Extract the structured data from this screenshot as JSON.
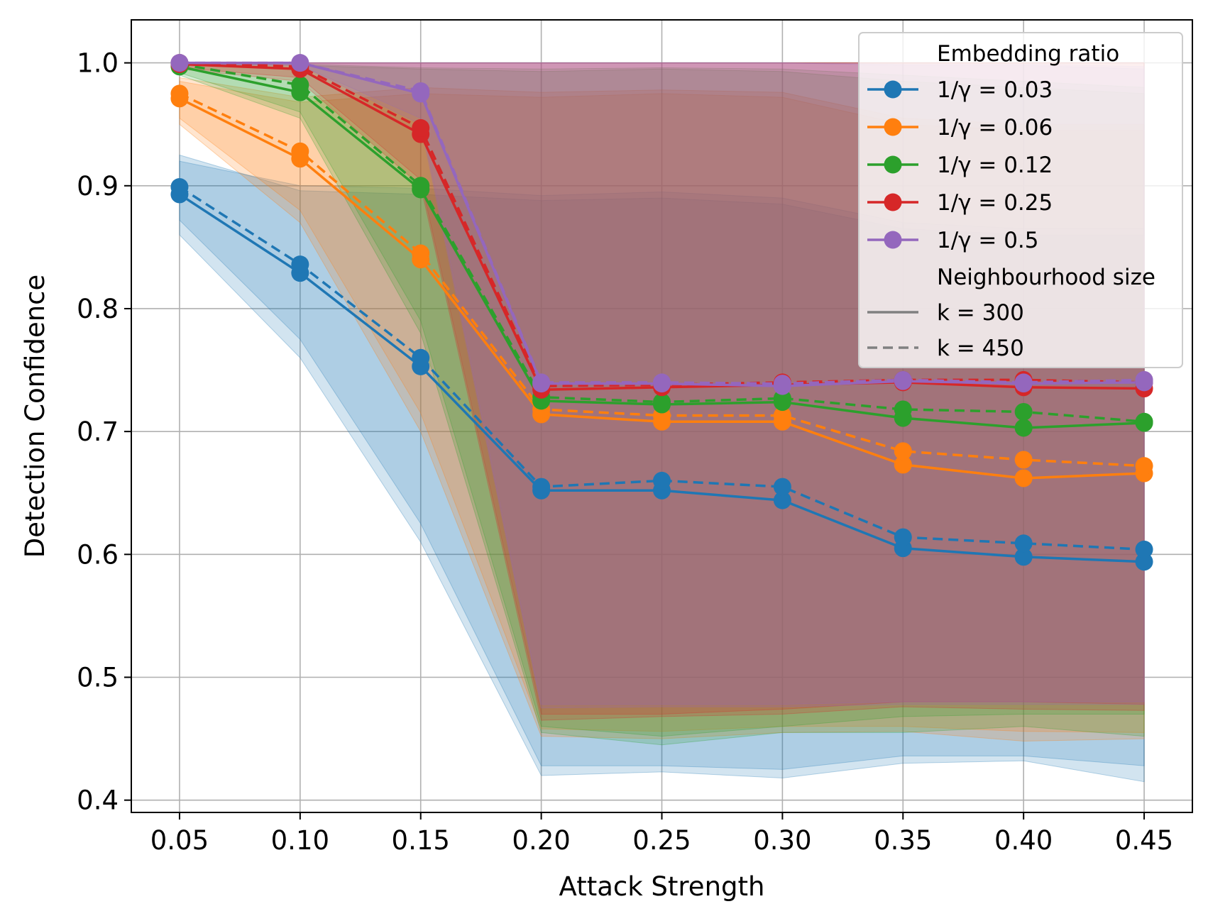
{
  "chart_data": {
    "type": "line",
    "xlabel": "Attack Strength",
    "ylabel": "Detection Confidence",
    "x": [
      0.05,
      0.1,
      0.15,
      0.2,
      0.25,
      0.3,
      0.35,
      0.4,
      0.45
    ],
    "x_tick_labels": [
      "0.05",
      "0.10",
      "0.15",
      "0.20",
      "0.25",
      "0.30",
      "0.35",
      "0.40",
      "0.45"
    ],
    "y_ticks": [
      0.4,
      0.5,
      0.6,
      0.7,
      0.8,
      0.9,
      1.0
    ],
    "y_tick_labels": [
      "0.4",
      "0.5",
      "0.6",
      "0.7",
      "0.8",
      "0.9",
      "1.0"
    ],
    "xlim": [
      0.03,
      0.47
    ],
    "ylim": [
      0.39,
      1.035
    ],
    "grid": true,
    "legend": {
      "placement": "top-right",
      "title1": "Embedding ratio",
      "title2": "Neighbourhood size",
      "style_entries": [
        {
          "label": "k = 300",
          "dash": "solid"
        },
        {
          "label": "k = 450",
          "dash": "dashed"
        }
      ]
    },
    "series": [
      {
        "name": "1/γ = 0.03",
        "color": "#1f77b4",
        "k300": [
          0.893,
          0.829,
          0.753,
          0.652,
          0.652,
          0.644,
          0.605,
          0.598,
          0.594
        ],
        "k450": [
          0.899,
          0.836,
          0.76,
          0.655,
          0.66,
          0.655,
          0.614,
          0.609,
          0.604
        ],
        "band300_low": [
          0.86,
          0.76,
          0.61,
          0.42,
          0.423,
          0.418,
          0.43,
          0.432,
          0.415
        ],
        "band300_high": [
          0.925,
          0.896,
          0.893,
          0.888,
          0.89,
          0.885,
          0.865,
          0.86,
          0.86
        ],
        "band450_low": [
          0.872,
          0.775,
          0.625,
          0.428,
          0.428,
          0.425,
          0.436,
          0.436,
          0.428
        ],
        "band450_high": [
          0.92,
          0.9,
          0.898,
          0.892,
          0.895,
          0.89,
          0.87,
          0.865,
          0.865
        ]
      },
      {
        "name": "1/γ = 0.06",
        "color": "#ff7f0e",
        "k300": [
          0.971,
          0.922,
          0.84,
          0.714,
          0.708,
          0.708,
          0.673,
          0.662,
          0.666
        ],
        "k450": [
          0.975,
          0.928,
          0.845,
          0.718,
          0.713,
          0.713,
          0.684,
          0.677,
          0.672
        ],
        "band300_low": [
          0.95,
          0.87,
          0.7,
          0.452,
          0.45,
          0.455,
          0.456,
          0.448,
          0.45
        ],
        "band300_high": [
          0.985,
          0.968,
          0.975,
          0.972,
          0.975,
          0.972,
          0.95,
          0.945,
          0.945
        ],
        "band450_low": [
          0.955,
          0.88,
          0.715,
          0.458,
          0.456,
          0.46,
          0.46,
          0.456,
          0.455
        ],
        "band450_high": [
          0.988,
          0.972,
          0.98,
          0.976,
          0.978,
          0.976,
          0.955,
          0.95,
          0.95
        ]
      },
      {
        "name": "1/γ = 0.12",
        "color": "#2ca02c",
        "k300": [
          0.997,
          0.976,
          0.897,
          0.725,
          0.722,
          0.724,
          0.711,
          0.703,
          0.707
        ],
        "k450": [
          0.999,
          0.982,
          0.9,
          0.728,
          0.724,
          0.727,
          0.718,
          0.716,
          0.708
        ],
        "band300_low": [
          0.99,
          0.955,
          0.78,
          0.455,
          0.445,
          0.455,
          0.455,
          0.46,
          0.452
        ],
        "band300_high": [
          1.0,
          0.998,
          0.995,
          0.993,
          0.995,
          0.993,
          0.985,
          0.98,
          0.975
        ],
        "band450_low": [
          0.992,
          0.96,
          0.79,
          0.46,
          0.452,
          0.46,
          0.468,
          0.47,
          0.47
        ],
        "band450_high": [
          1.0,
          0.999,
          0.996,
          0.995,
          0.996,
          0.995,
          0.99,
          0.985,
          0.98
        ]
      },
      {
        "name": "1/γ = 0.25",
        "color": "#d62728",
        "k300": [
          0.999,
          0.995,
          0.942,
          0.734,
          0.736,
          0.738,
          0.74,
          0.736,
          0.735
        ],
        "k450": [
          1.0,
          0.997,
          0.947,
          0.737,
          0.738,
          0.74,
          0.742,
          0.742,
          0.74
        ],
        "band300_low": [
          0.995,
          0.985,
          0.9,
          0.465,
          0.468,
          0.47,
          0.476,
          0.474,
          0.473
        ],
        "band300_high": [
          1.0,
          1.0,
          1.0,
          1.0,
          1.0,
          1.0,
          1.0,
          1.0,
          1.0
        ],
        "band450_low": [
          0.996,
          0.988,
          0.905,
          0.47,
          0.47,
          0.474,
          0.48,
          0.48,
          0.478
        ],
        "band450_high": [
          1.0,
          1.0,
          1.0,
          1.0,
          1.0,
          1.0,
          1.0,
          1.0,
          1.0
        ]
      },
      {
        "name": "1/γ = 0.5",
        "color": "#9467bd",
        "k300": [
          1.0,
          1.0,
          0.975,
          0.739,
          0.739,
          0.737,
          0.741,
          0.739,
          0.74
        ],
        "k450": [
          1.0,
          1.0,
          0.977,
          0.74,
          0.74,
          0.739,
          0.742,
          0.74,
          0.742
        ],
        "band300_low": [
          0.999,
          0.998,
          0.95,
          0.475,
          0.476,
          0.476,
          0.478,
          0.478,
          0.478
        ],
        "band300_high": [
          1.0,
          1.0,
          1.0,
          1.0,
          1.0,
          1.0,
          0.998,
          0.998,
          0.995
        ],
        "band450_low": [
          0.999,
          0.998,
          0.955,
          0.478,
          0.478,
          0.478,
          0.48,
          0.48,
          0.48
        ],
        "band450_high": [
          1.0,
          1.0,
          1.0,
          1.0,
          1.0,
          1.0,
          0.999,
          0.999,
          0.997
        ]
      }
    ]
  }
}
